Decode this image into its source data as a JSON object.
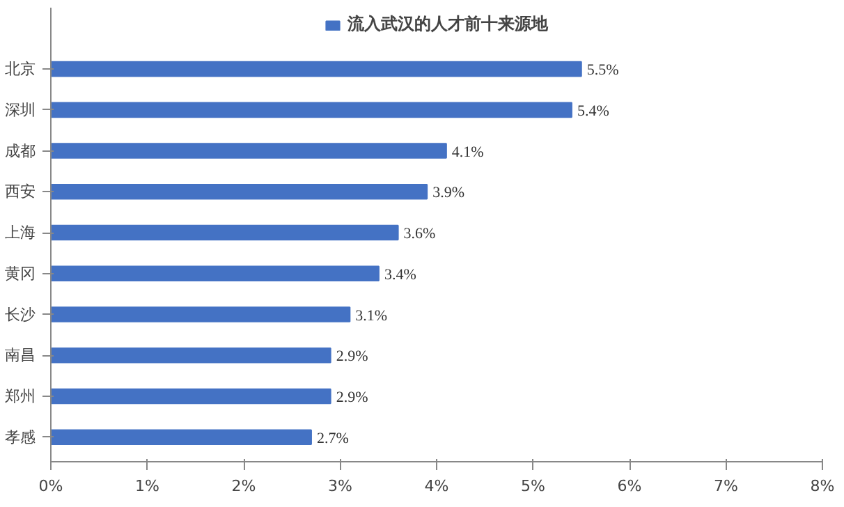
{
  "chart_data": {
    "type": "bar",
    "orientation": "horizontal",
    "categories": [
      "北京",
      "深圳",
      "成都",
      "西安",
      "上海",
      "黄冈",
      "长沙",
      "南昌",
      "郑州",
      "孝感"
    ],
    "series": [
      {
        "name": "流入武汉的人才前十来源地",
        "color": "#4472c4",
        "values": [
          5.5,
          5.4,
          4.1,
          3.9,
          3.6,
          3.4,
          3.1,
          2.9,
          2.9,
          2.7
        ],
        "value_labels": [
          "5.5%",
          "5.4%",
          "4.1%",
          "3.9%",
          "3.6%",
          "3.4%",
          "3.1%",
          "2.9%",
          "2.9%",
          "2.7%"
        ]
      }
    ],
    "xlim": [
      0,
      8
    ],
    "xticks": [
      {
        "value": 0,
        "label": "0%"
      },
      {
        "value": 1,
        "label": "1%"
      },
      {
        "value": 2,
        "label": "2%"
      },
      {
        "value": 3,
        "label": "3%"
      },
      {
        "value": 4,
        "label": "4%"
      },
      {
        "value": 5,
        "label": "5%"
      },
      {
        "value": 6,
        "label": "6%"
      },
      {
        "value": 7,
        "label": "7%"
      },
      {
        "value": 8,
        "label": "8%"
      }
    ],
    "legend": "top",
    "grid": false
  }
}
